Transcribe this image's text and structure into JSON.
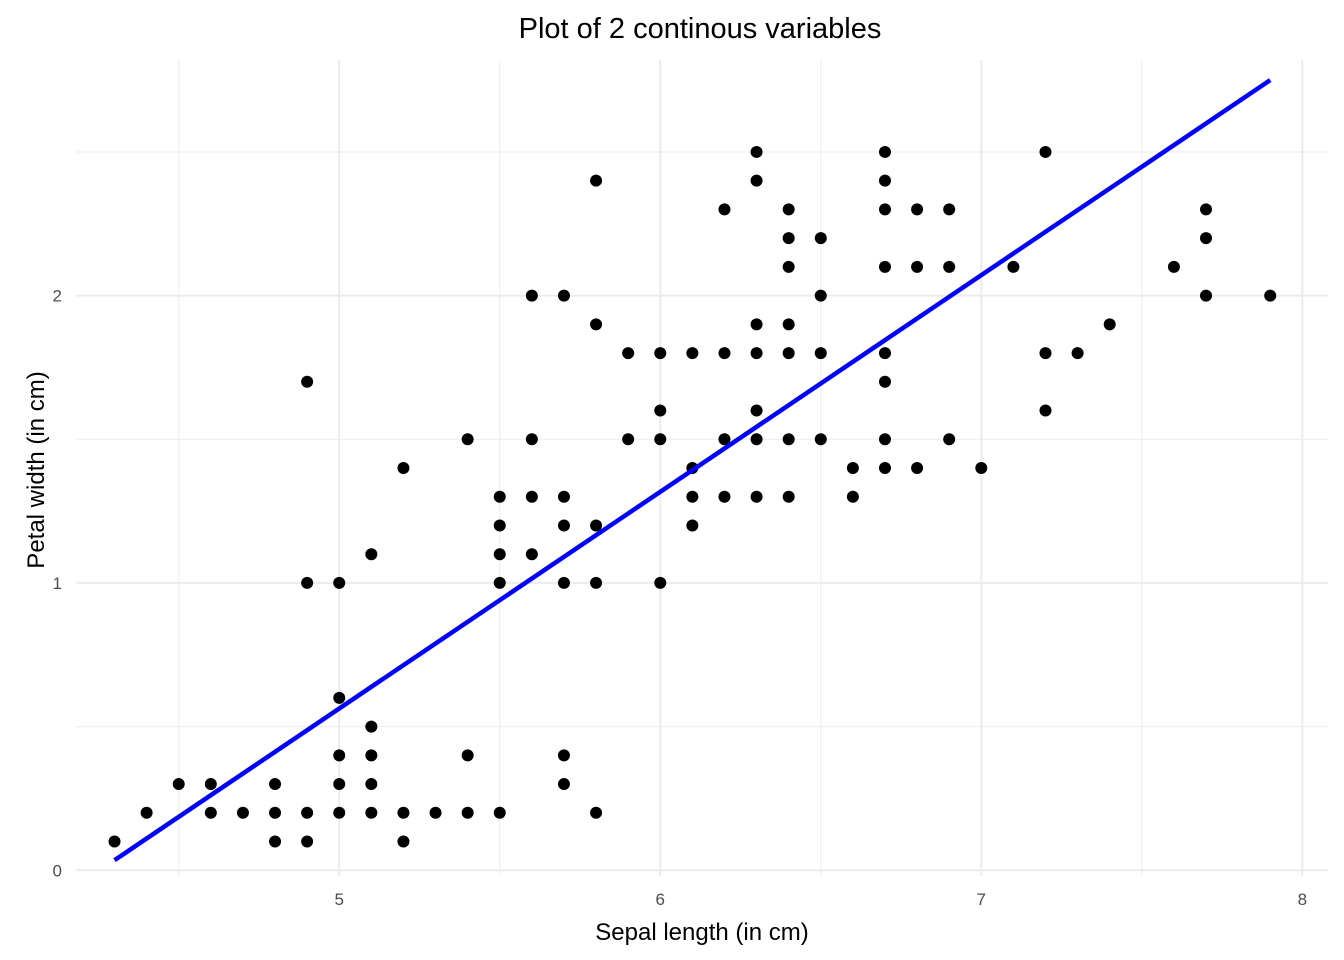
{
  "chart_data": {
    "type": "scatter",
    "title": "Plot of 2 continous variables",
    "xlabel": "Sepal length (in cm)",
    "ylabel": "Petal width (in cm)",
    "xlim": [
      4.18,
      8.08
    ],
    "ylim": [
      -0.02,
      2.82
    ],
    "x_ticks": [
      5,
      6,
      7,
      8
    ],
    "y_ticks": [
      0,
      1,
      2
    ],
    "x_minor_ticks": [
      4.5,
      5.5,
      6.5,
      7.5
    ],
    "y_minor_ticks": [
      0.5,
      1.5,
      2.5
    ],
    "x_tick_labels": [
      "5",
      "6",
      "7",
      "8"
    ],
    "y_tick_labels": [
      "0",
      "1",
      "2"
    ],
    "grid": true,
    "point_color": "#000000",
    "line_color": "#0000ff",
    "points": [
      [
        4.3,
        0.1
      ],
      [
        4.4,
        0.2
      ],
      [
        4.5,
        0.3
      ],
      [
        4.6,
        0.3
      ],
      [
        4.6,
        0.2
      ],
      [
        4.7,
        0.2
      ],
      [
        4.8,
        0.3
      ],
      [
        4.8,
        0.2
      ],
      [
        4.8,
        0.1
      ],
      [
        4.9,
        1.7
      ],
      [
        4.9,
        1.0
      ],
      [
        4.9,
        0.2
      ],
      [
        4.9,
        0.1
      ],
      [
        5.0,
        1.0
      ],
      [
        5.0,
        0.6
      ],
      [
        5.0,
        0.4
      ],
      [
        5.0,
        0.3
      ],
      [
        5.0,
        0.2
      ],
      [
        5.1,
        1.1
      ],
      [
        5.1,
        0.5
      ],
      [
        5.1,
        0.4
      ],
      [
        5.1,
        0.3
      ],
      [
        5.1,
        0.2
      ],
      [
        5.2,
        1.4
      ],
      [
        5.2,
        0.2
      ],
      [
        5.2,
        0.1
      ],
      [
        5.3,
        0.2
      ],
      [
        5.4,
        1.5
      ],
      [
        5.4,
        0.4
      ],
      [
        5.4,
        0.2
      ],
      [
        5.5,
        1.3
      ],
      [
        5.5,
        1.2
      ],
      [
        5.5,
        1.1
      ],
      [
        5.5,
        1.0
      ],
      [
        5.5,
        0.2
      ],
      [
        5.6,
        2.0
      ],
      [
        5.6,
        1.5
      ],
      [
        5.6,
        1.3
      ],
      [
        5.6,
        1.1
      ],
      [
        5.7,
        2.0
      ],
      [
        5.7,
        1.3
      ],
      [
        5.7,
        1.2
      ],
      [
        5.7,
        1.0
      ],
      [
        5.7,
        0.4
      ],
      [
        5.7,
        0.3
      ],
      [
        5.8,
        2.4
      ],
      [
        5.8,
        1.9
      ],
      [
        5.8,
        1.2
      ],
      [
        5.8,
        1.0
      ],
      [
        5.8,
        0.2
      ],
      [
        5.9,
        1.8
      ],
      [
        5.9,
        1.5
      ],
      [
        6.0,
        1.8
      ],
      [
        6.0,
        1.6
      ],
      [
        6.0,
        1.5
      ],
      [
        6.0,
        1.0
      ],
      [
        6.1,
        1.8
      ],
      [
        6.1,
        1.4
      ],
      [
        6.1,
        1.3
      ],
      [
        6.1,
        1.2
      ],
      [
        6.2,
        2.3
      ],
      [
        6.2,
        1.8
      ],
      [
        6.2,
        1.5
      ],
      [
        6.2,
        1.3
      ],
      [
        6.3,
        2.5
      ],
      [
        6.3,
        2.4
      ],
      [
        6.3,
        1.9
      ],
      [
        6.3,
        1.8
      ],
      [
        6.3,
        1.6
      ],
      [
        6.3,
        1.5
      ],
      [
        6.3,
        1.3
      ],
      [
        6.4,
        2.3
      ],
      [
        6.4,
        2.2
      ],
      [
        6.4,
        2.1
      ],
      [
        6.4,
        1.9
      ],
      [
        6.4,
        1.8
      ],
      [
        6.4,
        1.5
      ],
      [
        6.4,
        1.3
      ],
      [
        6.5,
        2.2
      ],
      [
        6.5,
        2.0
      ],
      [
        6.5,
        1.8
      ],
      [
        6.5,
        1.5
      ],
      [
        6.6,
        1.4
      ],
      [
        6.6,
        1.3
      ],
      [
        6.7,
        2.5
      ],
      [
        6.7,
        2.4
      ],
      [
        6.7,
        2.3
      ],
      [
        6.7,
        2.1
      ],
      [
        6.7,
        1.8
      ],
      [
        6.7,
        1.7
      ],
      [
        6.7,
        1.5
      ],
      [
        6.7,
        1.4
      ],
      [
        6.8,
        2.3
      ],
      [
        6.8,
        2.1
      ],
      [
        6.8,
        1.4
      ],
      [
        6.9,
        2.3
      ],
      [
        6.9,
        2.1
      ],
      [
        6.9,
        1.5
      ],
      [
        7.0,
        1.4
      ],
      [
        7.1,
        2.1
      ],
      [
        7.2,
        2.5
      ],
      [
        7.2,
        1.8
      ],
      [
        7.2,
        1.6
      ],
      [
        7.3,
        1.8
      ],
      [
        7.4,
        1.9
      ],
      [
        7.6,
        2.1
      ],
      [
        7.7,
        2.3
      ],
      [
        7.7,
        2.2
      ],
      [
        7.7,
        2.0
      ],
      [
        7.9,
        2.0
      ]
    ],
    "fit_line": {
      "x": [
        4.3,
        7.9
      ],
      "y": [
        0.035,
        2.75
      ]
    }
  }
}
